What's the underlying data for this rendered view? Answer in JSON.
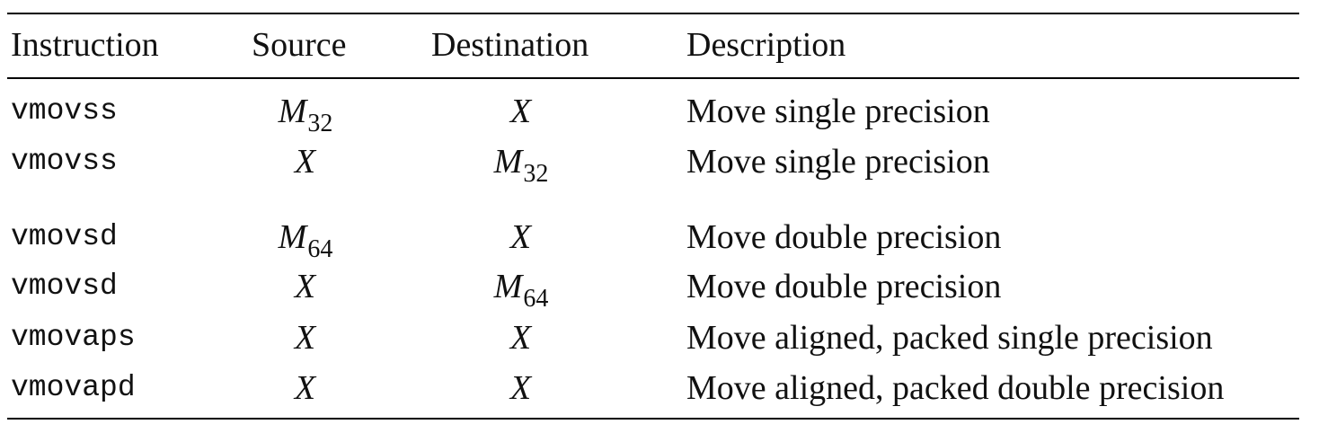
{
  "table": {
    "headers": {
      "instruction": "Instruction",
      "source": "Source",
      "destination": "Destination",
      "description": "Description"
    },
    "rows": [
      {
        "instruction": "vmovss",
        "source": {
          "base": "M",
          "sub": "32"
        },
        "destination": {
          "base": "X",
          "sub": ""
        },
        "description": "Move single precision"
      },
      {
        "instruction": "vmovss",
        "source": {
          "base": "X",
          "sub": ""
        },
        "destination": {
          "base": "M",
          "sub": "32"
        },
        "description": "Move single precision"
      },
      {
        "instruction": "vmovsd",
        "source": {
          "base": "M",
          "sub": "64"
        },
        "destination": {
          "base": "X",
          "sub": ""
        },
        "description": "Move double precision"
      },
      {
        "instruction": "vmovsd",
        "source": {
          "base": "X",
          "sub": ""
        },
        "destination": {
          "base": "M",
          "sub": "64"
        },
        "description": "Move double precision"
      },
      {
        "instruction": "vmovaps",
        "source": {
          "base": "X",
          "sub": ""
        },
        "destination": {
          "base": "X",
          "sub": ""
        },
        "description": "Move aligned, packed single precision"
      },
      {
        "instruction": "vmovapd",
        "source": {
          "base": "X",
          "sub": ""
        },
        "destination": {
          "base": "X",
          "sub": ""
        },
        "description": "Move aligned, packed double precision"
      }
    ]
  }
}
